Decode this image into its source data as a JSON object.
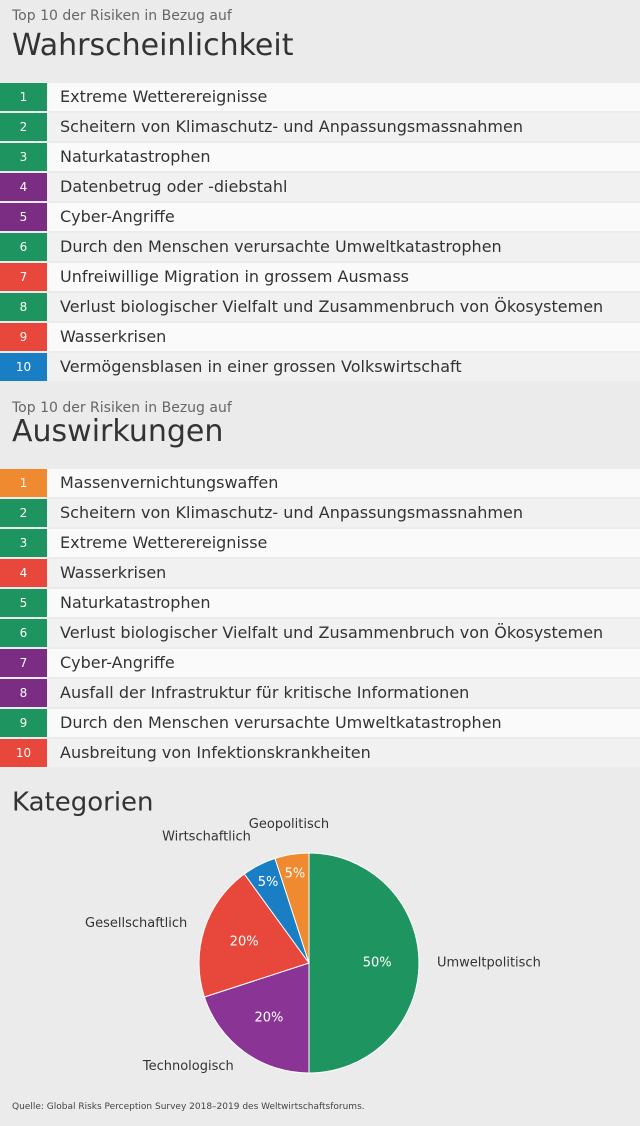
{
  "lists": [
    {
      "kicker": "Top 10 der Risiken in Bezug auf",
      "title": "Wahrscheinlichkeit",
      "items": [
        {
          "rank": 1,
          "label": "Extreme Wetterereignisse",
          "color": "#1e9460"
        },
        {
          "rank": 2,
          "label": "Scheitern von Klimaschutz- und Anpassungsmassnahmen",
          "color": "#1e9460"
        },
        {
          "rank": 3,
          "label": "Naturkatastrophen",
          "color": "#1e9460"
        },
        {
          "rank": 4,
          "label": "Datenbetrug oder -diebstahl",
          "color": "#7b2d84"
        },
        {
          "rank": 5,
          "label": "Cyber-Angriffe",
          "color": "#7b2d84"
        },
        {
          "rank": 6,
          "label": "Durch den Menschen verursachte Umweltkatastrophen",
          "color": "#1e9460"
        },
        {
          "rank": 7,
          "label": "Unfreiwillige Migration in grossem Ausmass",
          "color": "#e8473b"
        },
        {
          "rank": 8,
          "label": "Verlust biologischer Vielfalt und Zusammenbruch von Ökosystemen",
          "color": "#1e9460"
        },
        {
          "rank": 9,
          "label": "Wasserkrisen",
          "color": "#e8473b"
        },
        {
          "rank": 10,
          "label": "Vermögensblasen in einer grossen Volkswirtschaft",
          "color": "#1a7ec4"
        }
      ]
    },
    {
      "kicker": "Top 10 der Risiken in Bezug auf",
      "title": "Auswirkungen",
      "items": [
        {
          "rank": 1,
          "label": "Massenvernichtungswaffen",
          "color": "#ef8a30"
        },
        {
          "rank": 2,
          "label": "Scheitern von Klimaschutz- und Anpassungsmassnahmen",
          "color": "#1e9460"
        },
        {
          "rank": 3,
          "label": "Extreme Wetterereignisse",
          "color": "#1e9460"
        },
        {
          "rank": 4,
          "label": "Wasserkrisen",
          "color": "#e8473b"
        },
        {
          "rank": 5,
          "label": "Naturkatastrophen",
          "color": "#1e9460"
        },
        {
          "rank": 6,
          "label": "Verlust biologischer Vielfalt und Zusammenbruch von Ökosystemen",
          "color": "#1e9460"
        },
        {
          "rank": 7,
          "label": "Cyber-Angriffe",
          "color": "#7b2d84"
        },
        {
          "rank": 8,
          "label": "Ausfall der Infrastruktur für kritische Informationen",
          "color": "#7b2d84"
        },
        {
          "rank": 9,
          "label": "Durch den Menschen verursachte Umweltkatastrophen",
          "color": "#1e9460"
        },
        {
          "rank": 10,
          "label": "Ausbreitung von Infektionskrankheiten",
          "color": "#e8473b"
        }
      ]
    }
  ],
  "chart_data": {
    "type": "pie",
    "title": "Kategorien",
    "categories": [
      "Umweltpolitisch",
      "Technologisch",
      "Gesellschaftlich",
      "Wirtschaftlich",
      "Geopolitisch"
    ],
    "values": [
      50,
      20,
      20,
      5,
      5
    ],
    "value_labels": [
      "50%",
      "20%",
      "20%",
      "5%",
      "5%"
    ],
    "colors": [
      "#1e9460",
      "#8a3496",
      "#e8473b",
      "#1a7ec4",
      "#ef8a30"
    ]
  },
  "footer": "Quelle: Global Risks Perception Survey 2018–2019 des Weltwirtschaftsforums."
}
